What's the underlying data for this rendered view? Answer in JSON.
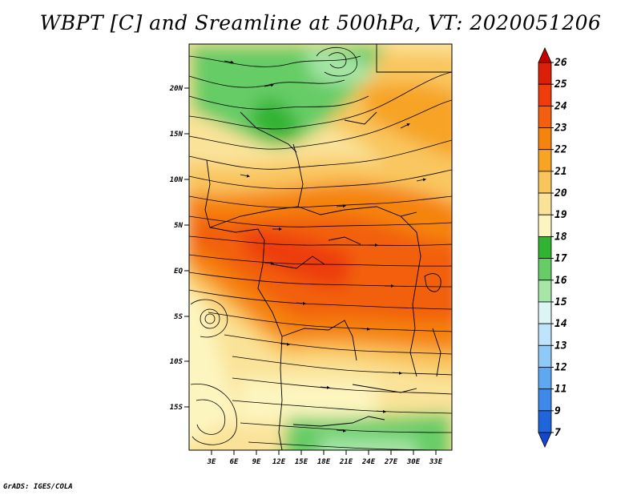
{
  "title": "WBPT [C] and Sreamline at 500hPa, VT: 2020051206",
  "credit": "GrADS: IGES/COLA",
  "lat_labels": [
    "20N",
    "15N",
    "10N",
    "5N",
    "EQ",
    "5S",
    "10S",
    "15S"
  ],
  "lon_labels": [
    "3E",
    "6E",
    "9E",
    "12E",
    "15E",
    "18E",
    "21E",
    "24E",
    "27E",
    "30E",
    "33E"
  ],
  "colorbar": {
    "levels": [
      "26",
      "25",
      "24",
      "23",
      "22",
      "21",
      "20",
      "19",
      "18",
      "17",
      "16",
      "15",
      "14",
      "13",
      "12",
      "11",
      "9",
      "7"
    ],
    "colors": [
      "#c30000",
      "#dc1f08",
      "#ee3c0d",
      "#f2600f",
      "#f5840f",
      "#f7a425",
      "#f9c65e",
      "#fae399",
      "#fdf5bf",
      "#32b432",
      "#66cc66",
      "#a6e5a6",
      "#ddf5f5",
      "#bfe3fb",
      "#8fcaf7",
      "#5ea8f2",
      "#3c89e9",
      "#1f66db",
      "#1448cc"
    ]
  }
}
